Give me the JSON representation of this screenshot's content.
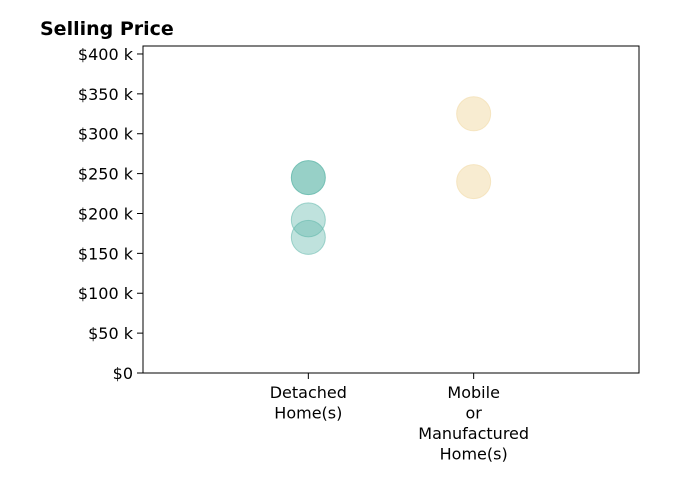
{
  "chart_data": {
    "type": "scatter",
    "title": "Selling Price",
    "xlabel": "",
    "ylabel": "",
    "categories": [
      [
        "Detached",
        "Home(s)"
      ],
      [
        "Mobile",
        "or",
        "Manufactured",
        "Home(s)"
      ]
    ],
    "y_ticks": [
      0,
      50000,
      100000,
      150000,
      200000,
      250000,
      300000,
      350000,
      400000
    ],
    "y_tick_labels": [
      "$0",
      "$50 k",
      "$100 k",
      "$150 k",
      "$200 k",
      "$250 k",
      "$300 k",
      "$350 k",
      "$400 k"
    ],
    "ylim": [
      0,
      410000
    ],
    "grid": false,
    "series": [
      {
        "category_index": 0,
        "color": "#5fb7a9",
        "points": [
          {
            "y": 245000,
            "opacity": 0.65
          },
          {
            "y": 192000,
            "opacity": 0.4
          },
          {
            "y": 170000,
            "opacity": 0.4
          }
        ]
      },
      {
        "category_index": 1,
        "color": "#f3dfb3",
        "points": [
          {
            "y": 325000,
            "opacity": 0.6
          },
          {
            "y": 240000,
            "opacity": 0.6
          }
        ]
      }
    ]
  }
}
